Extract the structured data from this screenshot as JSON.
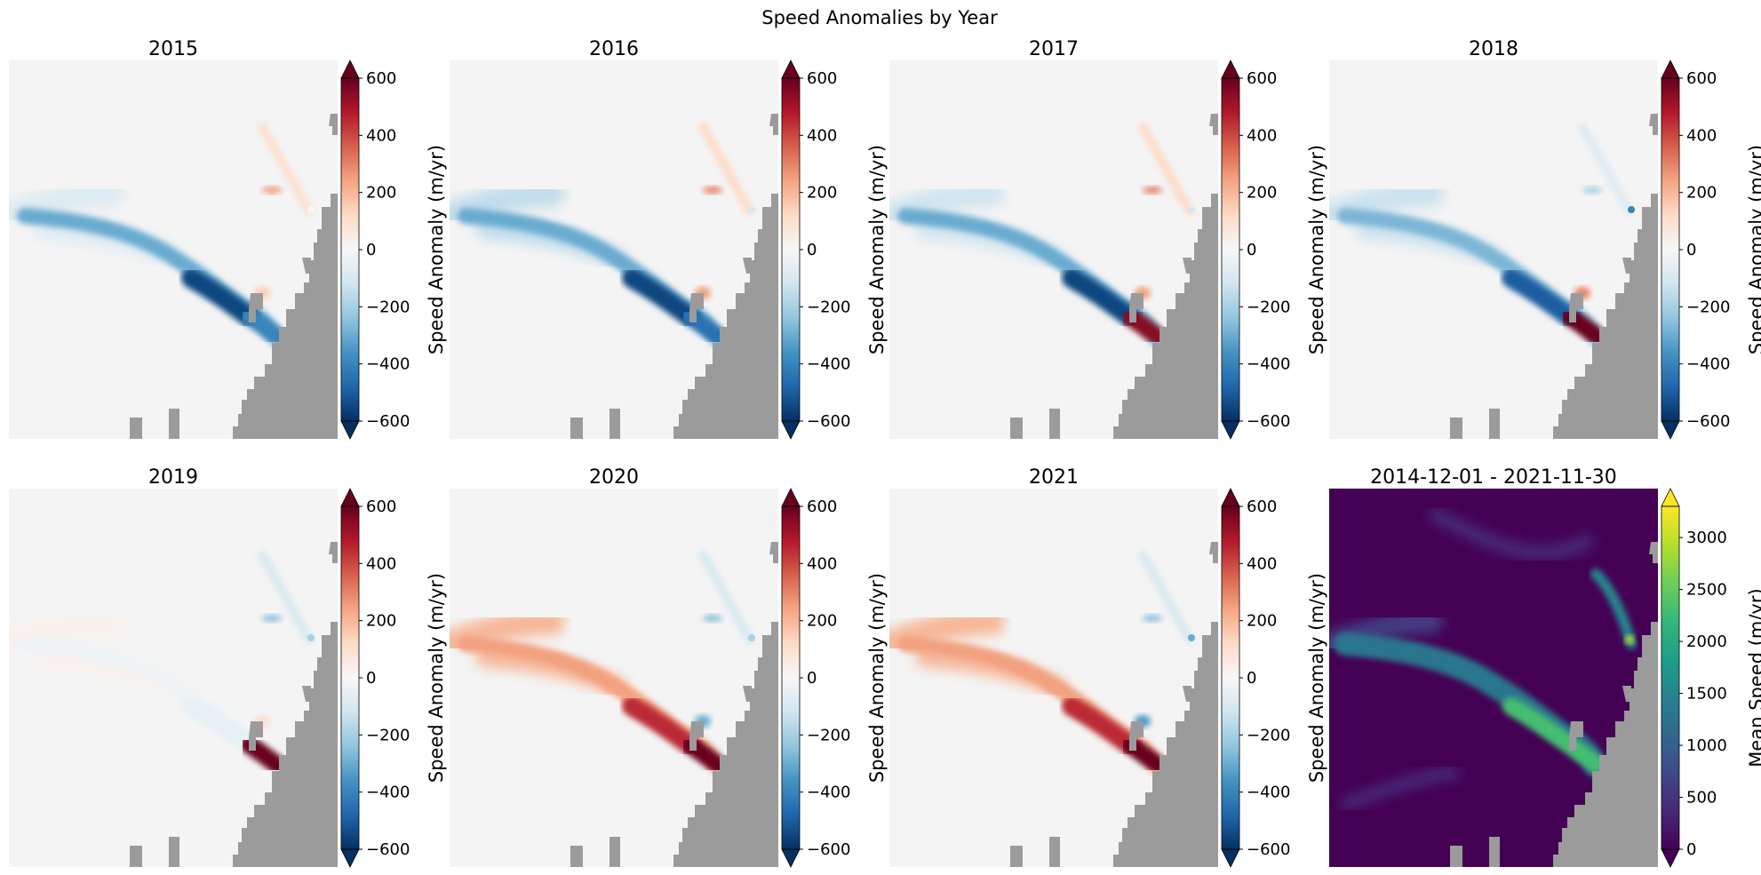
{
  "figure": {
    "title": "Speed Anomalies by Year"
  },
  "colors": {
    "land": "#9b9b9b",
    "background_anomaly": "#f4f4f4",
    "background_mean": "#440154",
    "rdbu": [
      "#053061",
      "#2166ac",
      "#4393c3",
      "#92c5de",
      "#d1e5f0",
      "#f7f7f7",
      "#fddbc7",
      "#f4a582",
      "#d6604d",
      "#b2182b",
      "#67001f"
    ],
    "viridis": [
      "#440154",
      "#482878",
      "#3e4989",
      "#31688e",
      "#26828e",
      "#1f9e89",
      "#35b779",
      "#6ece58",
      "#b5de2b",
      "#fde725"
    ]
  },
  "chart_data": [
    {
      "type": "heatmap",
      "title": "2015",
      "colorbar": {
        "label": "Speed Anomaly (m/yr)",
        "ticks": [
          "600",
          "400",
          "200",
          "0",
          "−200",
          "−400",
          "−600"
        ],
        "range": [
          -600,
          600
        ],
        "colormap": "RdBu_r",
        "extend": "both"
      },
      "features": {
        "main_glacier_anomaly": -550,
        "terminus_anomaly": -400,
        "upstream_anomaly": -80,
        "north_glacier_anomaly": 250,
        "north_glacier_tip_anomaly": 0,
        "side_patch_anomaly": 150
      }
    },
    {
      "type": "heatmap",
      "title": "2016",
      "colorbar": {
        "label": "Speed Anomaly (m/yr)",
        "ticks": [
          "600",
          "400",
          "200",
          "0",
          "−200",
          "−400",
          "−600"
        ],
        "range": [
          -600,
          600
        ],
        "colormap": "RdBu_r",
        "extend": "both"
      },
      "features": {
        "main_glacier_anomaly": -550,
        "terminus_anomaly": -450,
        "upstream_anomaly": -150,
        "north_glacier_anomaly": 300,
        "north_glacier_tip_anomaly": -100,
        "side_patch_anomaly": 250
      }
    },
    {
      "type": "heatmap",
      "title": "2017",
      "colorbar": {
        "label": "Speed Anomaly (m/yr)",
        "ticks": [
          "600",
          "400",
          "200",
          "0",
          "−200",
          "−400",
          "−600"
        ],
        "range": [
          -600,
          600
        ],
        "colormap": "RdBu_r",
        "extend": "both"
      },
      "features": {
        "main_glacier_anomaly": -550,
        "terminus_anomaly": 550,
        "upstream_anomaly": -120,
        "north_glacier_anomaly": 300,
        "north_glacier_tip_anomaly": -100,
        "side_patch_anomaly": 250
      }
    },
    {
      "type": "heatmap",
      "title": "2018",
      "colorbar": {
        "label": "Speed Anomaly (m/yr)",
        "ticks": [
          "600",
          "400",
          "200",
          "0",
          "−200",
          "−400",
          "−600"
        ],
        "range": [
          -600,
          600
        ],
        "colormap": "RdBu_r",
        "extend": "both"
      },
      "features": {
        "main_glacier_anomaly": -500,
        "terminus_anomaly": 600,
        "upstream_anomaly": -130,
        "north_glacier_anomaly": -200,
        "north_glacier_tip_anomaly": -400,
        "side_patch_anomaly": 300
      }
    },
    {
      "type": "heatmap",
      "title": "2019",
      "colorbar": {
        "label": "Speed Anomaly (m/yr)",
        "ticks": [
          "600",
          "400",
          "200",
          "0",
          "−200",
          "−400",
          "−600"
        ],
        "range": [
          -600,
          600
        ],
        "colormap": "RdBu_r",
        "extend": "both"
      },
      "features": {
        "main_glacier_anomaly": -50,
        "terminus_anomaly": 600,
        "upstream_anomaly": 30,
        "north_glacier_anomaly": -250,
        "north_glacier_tip_anomaly": -200,
        "side_patch_anomaly": 100
      }
    },
    {
      "type": "heatmap",
      "title": "2020",
      "colorbar": {
        "label": "Speed Anomaly (m/yr)",
        "ticks": [
          "600",
          "400",
          "200",
          "0",
          "−200",
          "−400",
          "−600"
        ],
        "range": [
          -600,
          600
        ],
        "colormap": "RdBu_r",
        "extend": "both"
      },
      "features": {
        "main_glacier_anomaly": 450,
        "terminus_anomaly": 600,
        "upstream_anomaly": 200,
        "north_glacier_anomaly": -250,
        "north_glacier_tip_anomaly": -200,
        "side_patch_anomaly": -300
      }
    },
    {
      "type": "heatmap",
      "title": "2021",
      "colorbar": {
        "label": "Speed Anomaly (m/yr)",
        "ticks": [
          "600",
          "400",
          "200",
          "0",
          "−200",
          "−400",
          "−600"
        ],
        "range": [
          -600,
          600
        ],
        "colormap": "RdBu_r",
        "extend": "both"
      },
      "features": {
        "main_glacier_anomaly": 450,
        "terminus_anomaly": 600,
        "upstream_anomaly": 200,
        "north_glacier_anomaly": -250,
        "north_glacier_tip_anomaly": -300,
        "side_patch_anomaly": -350
      }
    },
    {
      "type": "heatmap",
      "title": "2014-12-01 - 2021-11-30",
      "colorbar": {
        "label": "Mean Speed (m/yr)",
        "ticks": [
          "3000",
          "2500",
          "2000",
          "1500",
          "1000",
          "500",
          "0"
        ],
        "range": [
          0,
          3300
        ],
        "colormap": "viridis",
        "extend": "both"
      },
      "features": {
        "main_glacier_speed": 1300,
        "terminus_speed": 2300,
        "upstream_speed": 600,
        "north_glacier_speed": 1500,
        "north_glacier_tip_speed": 3000,
        "branch_speed": 400
      }
    }
  ]
}
